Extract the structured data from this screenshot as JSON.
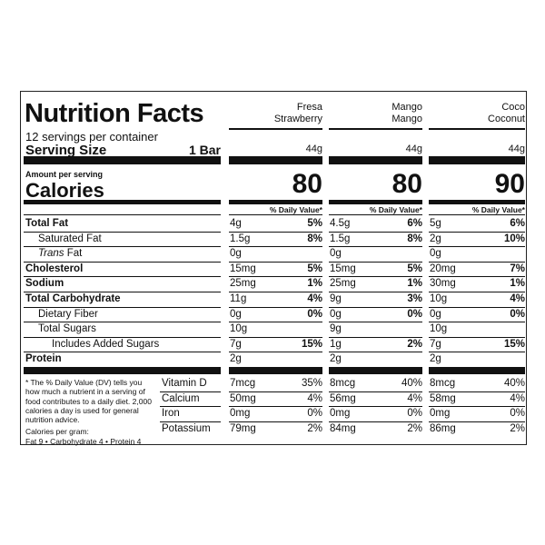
{
  "label": {
    "title": "Nutrition Facts",
    "servings": "12 servings per container",
    "serving_size_label": "Serving Size",
    "serving_size": "1 Bar",
    "amount_per_serving": "Amount per serving",
    "calories_label": "Calories",
    "dv_header": "% Daily Value*",
    "nutrients": [
      {
        "name": "Total Fat",
        "style": "bold"
      },
      {
        "name": "Saturated Fat",
        "style": "indent"
      },
      {
        "italic_prefix": "Trans",
        "name": "Fat",
        "style": "indent"
      },
      {
        "name": "Cholesterol",
        "style": "bold"
      },
      {
        "name": "Sodium",
        "style": "bold"
      },
      {
        "name": "Total Carbohydrate",
        "style": "bold"
      },
      {
        "name": "Dietary Fiber",
        "style": "indent"
      },
      {
        "name": "Total Sugars",
        "style": "indent"
      },
      {
        "name": "Includes Added Sugars",
        "style": "indent2"
      },
      {
        "name": "Protein",
        "style": "bold"
      }
    ],
    "vitamins": [
      "Vitamin D",
      "Calcium",
      "Iron",
      "Potassium"
    ],
    "footnote": "* The % Daily Value (DV) tells you how much a nutrient in a serving of food contributes to a daily diet. 2,000 calories a day is used for general nutrition advice.",
    "calories_per_gram_label": "Calories per gram:",
    "calories_per_gram": "Fat 9 • Carbohydrate 4 • Protein 4",
    "flavors": [
      {
        "name_es": "Fresa",
        "name_en": "Strawberry",
        "serving": "44g",
        "calories": "80",
        "nutrients": [
          [
            "4g",
            "5%"
          ],
          [
            "1.5g",
            "8%"
          ],
          [
            "0g"
          ],
          [
            "15mg",
            "5%"
          ],
          [
            "25mg",
            "1%"
          ],
          [
            "11g",
            "4%"
          ],
          [
            "0g",
            "0%"
          ],
          [
            "10g"
          ],
          [
            "7g",
            "15%"
          ],
          [
            "2g"
          ]
        ],
        "vitamins": [
          [
            "7mcg",
            "35%"
          ],
          [
            "50mg",
            "4%"
          ],
          [
            "0mg",
            "0%"
          ],
          [
            "79mg",
            "2%"
          ]
        ]
      },
      {
        "name_es": "Mango",
        "name_en": "Mango",
        "serving": "44g",
        "calories": "80",
        "nutrients": [
          [
            "4.5g",
            "6%"
          ],
          [
            "1.5g",
            "8%"
          ],
          [
            "0g"
          ],
          [
            "15mg",
            "5%"
          ],
          [
            "25mg",
            "1%"
          ],
          [
            "9g",
            "3%"
          ],
          [
            "0g",
            "0%"
          ],
          [
            "9g"
          ],
          [
            "1g",
            "2%"
          ],
          [
            "2g"
          ]
        ],
        "vitamins": [
          [
            "8mcg",
            "40%"
          ],
          [
            "56mg",
            "4%"
          ],
          [
            "0mg",
            "0%"
          ],
          [
            "84mg",
            "2%"
          ]
        ]
      },
      {
        "name_es": "Coco",
        "name_en": "Coconut",
        "serving": "44g",
        "calories": "90",
        "nutrients": [
          [
            "5g",
            "6%"
          ],
          [
            "2g",
            "10%"
          ],
          [
            "0g"
          ],
          [
            "20mg",
            "7%"
          ],
          [
            "30mg",
            "1%"
          ],
          [
            "10g",
            "4%"
          ],
          [
            "0g",
            "0%"
          ],
          [
            "10g"
          ],
          [
            "7g",
            "15%"
          ],
          [
            "2g"
          ]
        ],
        "vitamins": [
          [
            "8mcg",
            "40%"
          ],
          [
            "58mg",
            "4%"
          ],
          [
            "0mg",
            "0%"
          ],
          [
            "86mg",
            "2%"
          ]
        ]
      }
    ]
  }
}
